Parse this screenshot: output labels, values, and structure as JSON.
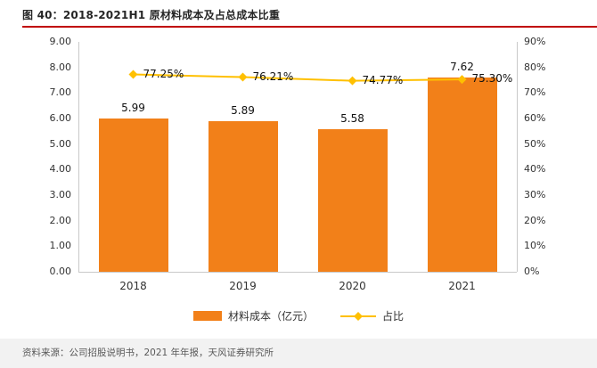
{
  "header": {
    "title": "图 40：2018-2021H1 原材料成本及占总成本比重"
  },
  "chart_data": {
    "type": "bar",
    "subtype": "bar-line-combo",
    "title": "2018-2021H1 原材料成本及占总成本比重",
    "categories": [
      "2018",
      "2019",
      "2020",
      "2021"
    ],
    "series": [
      {
        "name": "材料成本（亿元）",
        "type": "bar",
        "axis": "left",
        "values": [
          5.99,
          5.89,
          5.58,
          7.62
        ],
        "data_labels": [
          "5.99",
          "5.89",
          "5.58",
          "7.62"
        ],
        "color": "#F28019"
      },
      {
        "name": "占比",
        "type": "line",
        "axis": "right",
        "values": [
          77.25,
          76.21,
          74.77,
          75.3
        ],
        "data_labels": [
          "77.25%",
          "76.21%",
          "74.77%",
          "75.30%"
        ],
        "color": "#FFC000",
        "marker": "diamond"
      }
    ],
    "left_axis": {
      "min": 0,
      "max": 9,
      "step": 1,
      "tick_labels": [
        "0.00",
        "1.00",
        "2.00",
        "3.00",
        "4.00",
        "5.00",
        "6.00",
        "7.00",
        "8.00",
        "9.00"
      ]
    },
    "right_axis": {
      "min": 0,
      "max": 90,
      "step": 10,
      "tick_labels": [
        "0%",
        "10%",
        "20%",
        "30%",
        "40%",
        "50%",
        "60%",
        "70%",
        "80%",
        "90%"
      ]
    },
    "grid": false,
    "legend_position": "bottom"
  },
  "legend": {
    "bar_label": "材料成本（亿元）",
    "line_label": "占比"
  },
  "footer": {
    "source": "资料来源：公司招股说明书，2021 年年报，天风证券研究所"
  },
  "colors": {
    "bar": "#F28019",
    "line": "#FFC000",
    "title_rule": "#C00000",
    "axis_line": "#C9C9C9",
    "footer_bg": "#F2F2F2"
  }
}
